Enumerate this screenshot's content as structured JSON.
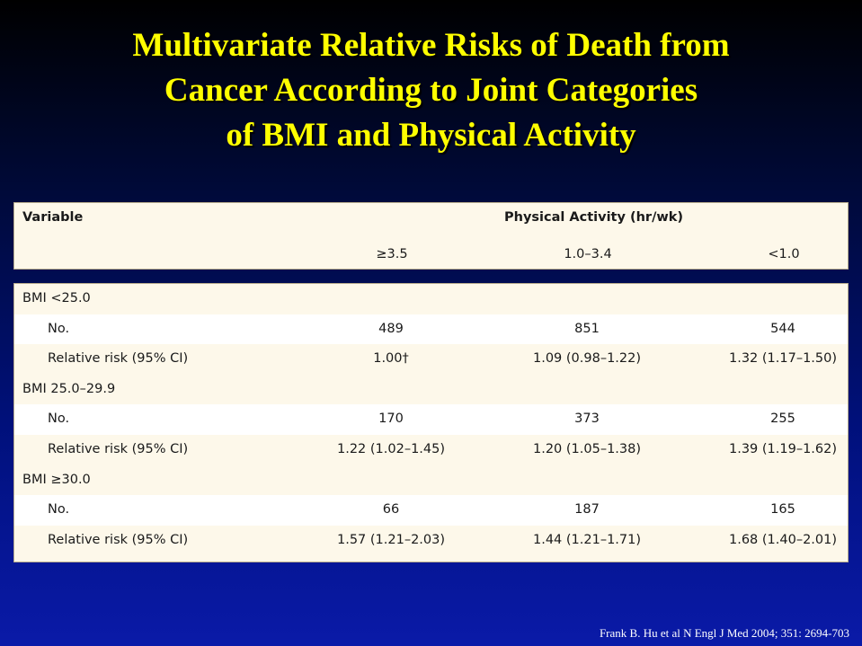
{
  "title_lines": [
    "Multivariate Relative Risks of Death from",
    "Cancer According to Joint Categories",
    "of BMI and Physical Activity"
  ],
  "table": {
    "variable_header": "Variable",
    "activity_header": "Physical Activity (hr/wk)",
    "columns": [
      "≥3.5",
      "1.0–3.4",
      "<1.0"
    ],
    "groups": [
      {
        "label": "BMI <25.0",
        "rows": [
          {
            "label": "No.",
            "values": [
              "489",
              "851",
              "544"
            ]
          },
          {
            "label": "Relative risk (95% CI)",
            "values": [
              "1.00†",
              "1.09 (0.98–1.22)",
              "1.32 (1.17–1.50)"
            ]
          }
        ]
      },
      {
        "label": "BMI 25.0–29.9",
        "rows": [
          {
            "label": "No.",
            "values": [
              "170",
              "373",
              "255"
            ]
          },
          {
            "label": "Relative risk (95% CI)",
            "values": [
              "1.22 (1.02–1.45)",
              "1.20 (1.05–1.38)",
              "1.39 (1.19–1.62)"
            ]
          }
        ]
      },
      {
        "label": "BMI ≥30.0",
        "rows": [
          {
            "label": "No.",
            "values": [
              "66",
              "187",
              "165"
            ]
          },
          {
            "label": "Relative risk (95% CI)",
            "values": [
              "1.57 (1.21–2.03)",
              "1.44 (1.21–1.71)",
              "1.68 (1.40–2.01)"
            ]
          }
        ]
      }
    ]
  },
  "citation": "Frank B. Hu et al N Engl J Med 2004; 351: 2694-703",
  "colors": {
    "title": "#ffff00",
    "panel_bg": "#fdf8ea",
    "row_alt_bg": "#ffffff",
    "background_top": "#000000",
    "background_bottom": "#0a1aa8"
  }
}
